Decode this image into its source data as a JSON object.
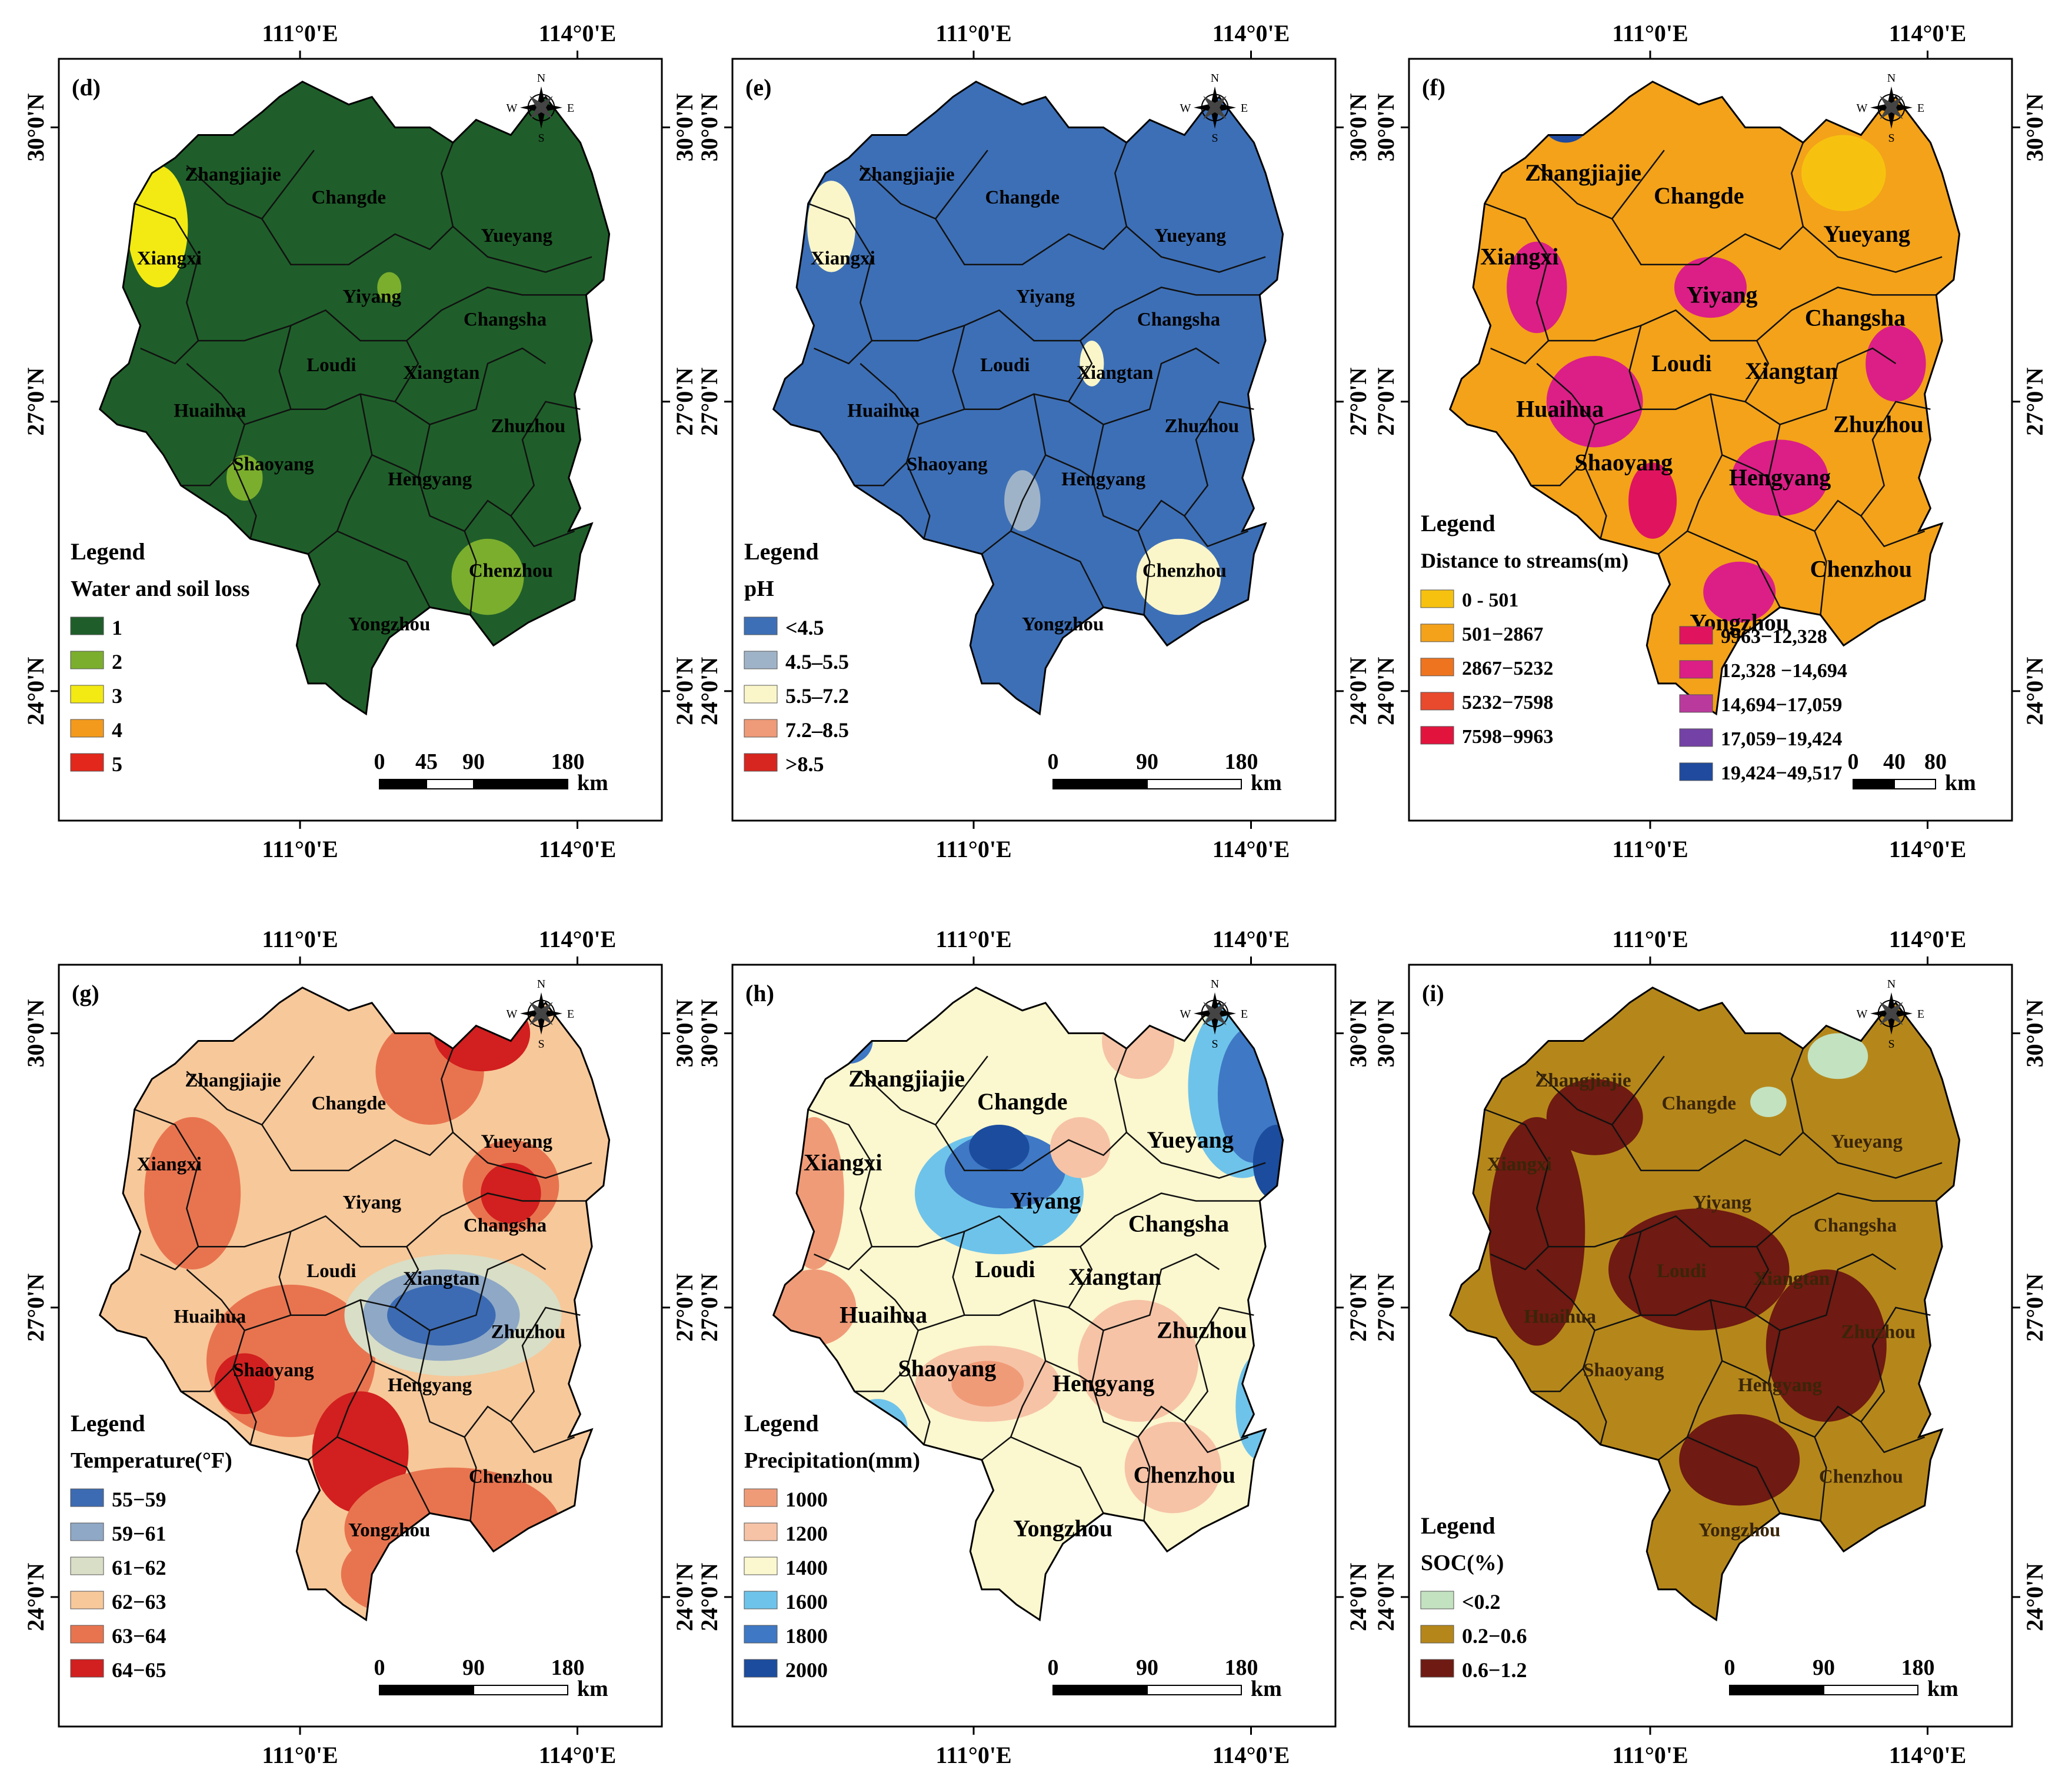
{
  "axes": {
    "lon_labels": [
      "111°0'E",
      "114°0'E"
    ],
    "lat_labels": [
      "30°0'N",
      "27°0'N",
      "24°0'N"
    ]
  },
  "compass": {
    "n": "N",
    "s": "S",
    "e": "E",
    "w": "W"
  },
  "scale_unit": "km",
  "panels": [
    {
      "label": "(d)",
      "legend_title": "Legend",
      "legend_subtitle": "Water and soil loss",
      "base_color": "#1f5e2a",
      "cities": [
        "Zhangjiajie",
        "Changde",
        "Xiangxi",
        "Yueyang",
        "Yiyang",
        "Changsha",
        "Loudi",
        "Xiangtan",
        "Huaihua",
        "Zhuzhou",
        "Shaoyang",
        "Hengyang",
        "Chenzhou",
        "Yongzhou"
      ],
      "legend_items": [
        {
          "label": "1",
          "color": "#1f5e2a"
        },
        {
          "label": "2",
          "color": "#7bae2d"
        },
        {
          "label": "3",
          "color": "#f2ea12"
        },
        {
          "label": "4",
          "color": "#f39a1c"
        },
        {
          "label": "5",
          "color": "#e3271c"
        }
      ],
      "scale": [
        "0",
        "45",
        "90",
        "180"
      ]
    },
    {
      "label": "(e)",
      "legend_title": "Legend",
      "legend_subtitle": "pH",
      "base_color": "#3d6fb6",
      "cities": [
        "Zhangjiajie",
        "Changde",
        "Xiangxi",
        "Yueyang",
        "Yiyang",
        "Changsha",
        "Loudi",
        "Xiangtan",
        "Huaihua",
        "Zhuzhou",
        "Shaoyang",
        "Hengyang",
        "Chenzhou",
        "Yongzhou"
      ],
      "legend_items": [
        {
          "label": "<4.5",
          "color": "#3d6fb6"
        },
        {
          "label": "4.5–5.5",
          "color": "#9fb3c8"
        },
        {
          "label": "5.5–7.2",
          "color": "#fbf6c9"
        },
        {
          "label": "7.2–8.5",
          "color": "#ef9a78"
        },
        {
          "label": ">8.5",
          "color": "#d6261f"
        }
      ],
      "scale": [
        "0",
        "90",
        "180"
      ]
    },
    {
      "label": "(f)",
      "legend_title": "Legend",
      "legend_subtitle": "Distance to streams(m)",
      "base_color": "#f3a21a",
      "cities": [
        "Zhangjiajie",
        "Changde",
        "Xiangxi",
        "Yueyang",
        "Yiyang",
        "Changsha",
        "Loudi",
        "Xiangtan",
        "Huaihua",
        "Zhuzhou",
        "Shaoyang",
        "Hengyang",
        "Chenzhou",
        "Yongzhou"
      ],
      "legend_items": [
        {
          "label": "0 - 501",
          "color": "#f7c20f"
        },
        {
          "label": "501−2867",
          "color": "#f3a21a"
        },
        {
          "label": "2867−5232",
          "color": "#ee7420"
        },
        {
          "label": "5232−7598",
          "color": "#e9492d"
        },
        {
          "label": "7598−9963",
          "color": "#e2143e"
        },
        {
          "label": "9963−12,328",
          "color": "#e0135f"
        },
        {
          "label": "12,328 −14,694",
          "color": "#db1f86"
        },
        {
          "label": "14,694−17,059",
          "color": "#b93a9c"
        },
        {
          "label": "17,059−19,424",
          "color": "#7442a6"
        },
        {
          "label": "19,424−49,517",
          "color": "#1f4a9e"
        }
      ],
      "scale": [
        "0",
        "40",
        "80"
      ]
    },
    {
      "label": "(g)",
      "legend_title": "Legend",
      "legend_subtitle": "Temperature(°F)",
      "base_color": "#f7c89a",
      "cities": [
        "Zhangjiajie",
        "Changde",
        "Xiangxi",
        "Yueyang",
        "Yiyang",
        "Changsha",
        "Loudi",
        "Xiangtan",
        "Huaihua",
        "Zhuzhou",
        "Shaoyang",
        "Hengyang",
        "Chenzhou",
        "Yongzhou"
      ],
      "legend_items": [
        {
          "label": "55−59",
          "color": "#3c6bb3"
        },
        {
          "label": "59−61",
          "color": "#8ea8c6"
        },
        {
          "label": "61−62",
          "color": "#d9dec6"
        },
        {
          "label": "62−63",
          "color": "#f7c89a"
        },
        {
          "label": "63−64",
          "color": "#e8744f"
        },
        {
          "label": "64−65",
          "color": "#d21f1f"
        }
      ],
      "scale": [
        "0",
        "90",
        "180"
      ]
    },
    {
      "label": "(h)",
      "legend_title": "Legend",
      "legend_subtitle": "Precipitation(mm)",
      "base_color": "#fbf7cf",
      "cities": [
        "Zhangjiajie",
        "Changde",
        "Xiangxi",
        "Yueyang",
        "Yiyang",
        "Changsha",
        "Loudi",
        "Xiangtan",
        "Huaihua",
        "Zhuzhou",
        "Shaoyang",
        "Hengyang",
        "Chenzhou",
        "Yongzhou"
      ],
      "legend_items": [
        {
          "label": "1000",
          "color": "#f09b78"
        },
        {
          "label": "1200",
          "color": "#f6c3a6"
        },
        {
          "label": "1400",
          "color": "#fbf7cf"
        },
        {
          "label": "1600",
          "color": "#6ec3ea"
        },
        {
          "label": "1800",
          "color": "#3f78c4"
        },
        {
          "label": "2000",
          "color": "#1b4c9e"
        }
      ],
      "scale": [
        "0",
        "90",
        "180"
      ]
    },
    {
      "label": "(i)",
      "legend_title": "Legend",
      "legend_subtitle": "SOC(%)",
      "base_color": "#b5871a",
      "cities": [
        "Zhangjiajie",
        "Changde",
        "Xiangxi",
        "Yueyang",
        "Yiyang",
        "Changsha",
        "Loudi",
        "Xiangtan",
        "Huaihua",
        "Zhuzhou",
        "Shaoyang",
        "Hengyang",
        "Chenzhou",
        "Yongzhou"
      ],
      "legend_items": [
        {
          "label": "<0.2",
          "color": "#c3e2c0"
        },
        {
          "label": "0.2−0.6",
          "color": "#b5871a"
        },
        {
          "label": "0.6−1.2",
          "color": "#6f1a12"
        }
      ],
      "scale": [
        "0",
        "90",
        "180"
      ]
    }
  ]
}
